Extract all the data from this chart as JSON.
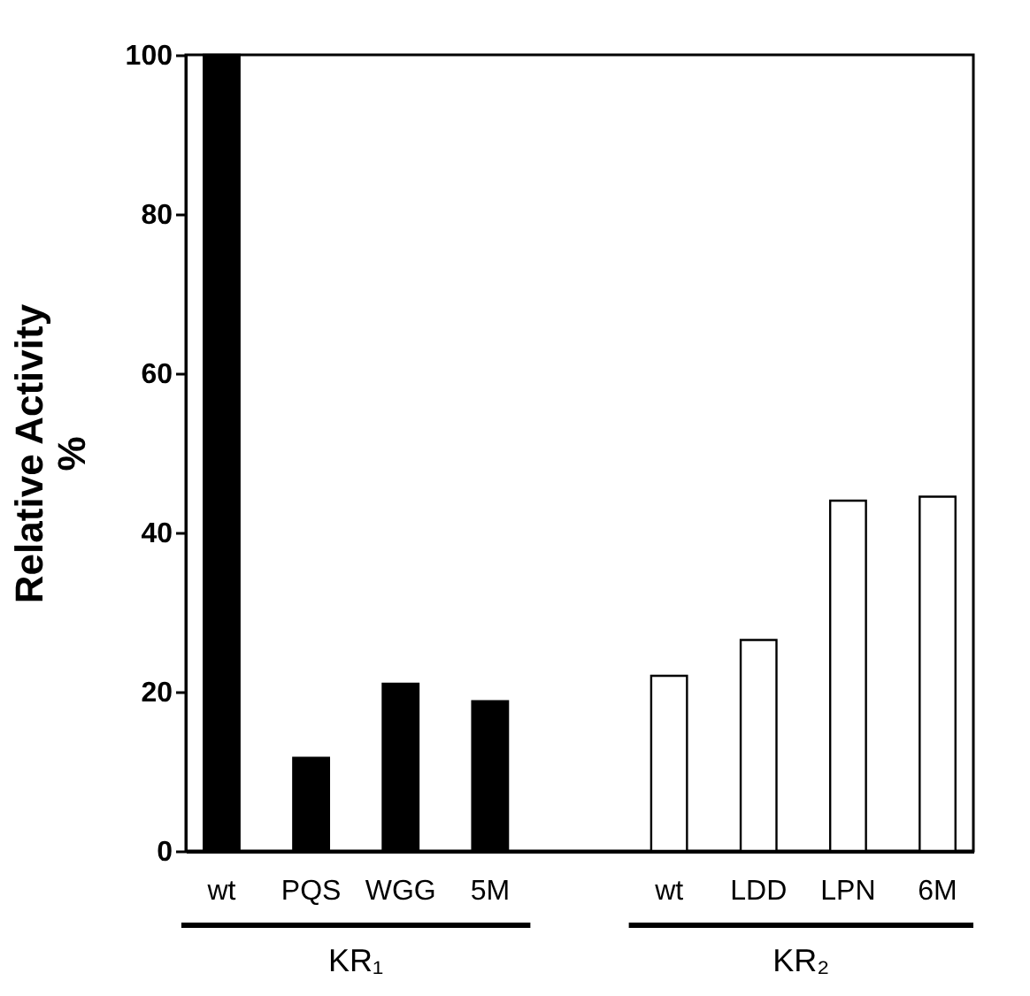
{
  "chart_data": {
    "type": "bar",
    "ylabel": "Relative Activity\n%",
    "categories": [
      "wt",
      "PQS",
      "WGG",
      "5M",
      null,
      "wt",
      "LDD",
      "LPN",
      "6M"
    ],
    "values": [
      100,
      11.7,
      21.0,
      18.8,
      null,
      22.0,
      26.5,
      44.0,
      44.5
    ],
    "colors": [
      "#000000",
      "#000000",
      "#000000",
      "#000000",
      "#ffffff",
      "#ffffff",
      "#ffffff",
      "#ffffff",
      "#ffffff"
    ],
    "ylim": [
      0,
      100
    ],
    "yticks": [
      0,
      20,
      40,
      60,
      80,
      100
    ],
    "annotations": [
      "KR₁",
      "KR₂"
    ],
    "grid": false
  }
}
